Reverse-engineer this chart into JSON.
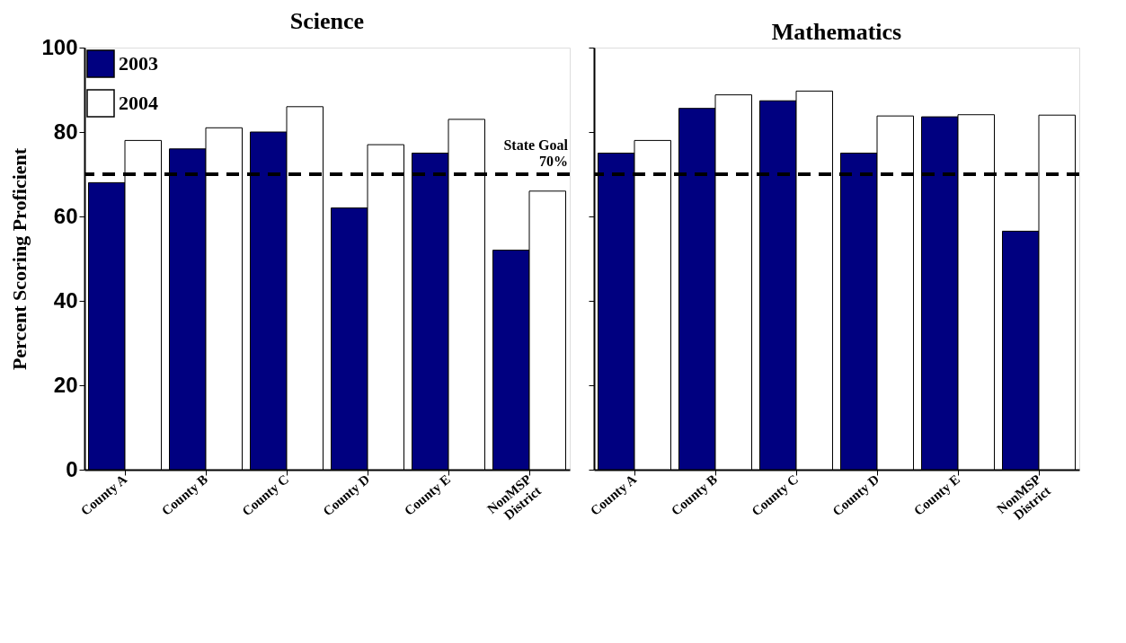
{
  "chart_data": [
    {
      "type": "bar",
      "title": "Science",
      "ylabel": "Percent Scoring Proficient",
      "categories": [
        "County A",
        "County B",
        "County C",
        "County D",
        "County E",
        "NonMSP\nDistrict"
      ],
      "series": [
        {
          "name": "2003",
          "color": "#000080",
          "values": [
            68,
            76,
            80,
            62,
            75,
            52
          ]
        },
        {
          "name": "2004",
          "color": "#ffffff",
          "values": [
            78,
            81,
            86,
            77,
            83,
            66
          ]
        }
      ],
      "ylim": [
        0,
        100
      ],
      "yticks": [
        0,
        20,
        40,
        60,
        80,
        100
      ],
      "grid": false,
      "legend": "top left",
      "ref_lines": [
        {
          "axis": "y",
          "value": 70,
          "label": "State Goal\n70%",
          "line_style": "dashed",
          "color": "#000000"
        }
      ]
    },
    {
      "type": "bar",
      "title": "Mathematics",
      "categories": [
        "County A",
        "County B",
        "County C",
        "County D",
        "County E",
        "NonMSP\nDistrict"
      ],
      "series": [
        {
          "name": "2003",
          "color": "#000080",
          "values": [
            75,
            85.6,
            87.4,
            75,
            83.6,
            56.5
          ]
        },
        {
          "name": "2004",
          "color": "#ffffff",
          "values": [
            78,
            88.8,
            89.7,
            83.8,
            84.1,
            84
          ]
        }
      ],
      "ylim": [
        0,
        100
      ],
      "yticks": [
        0,
        20,
        40,
        60,
        80,
        100
      ],
      "grid": false,
      "tick_labels": "x",
      "ref_lines": [
        {
          "axis": "y",
          "value": 70,
          "line_style": "dashed",
          "color": "#000000"
        }
      ]
    }
  ]
}
